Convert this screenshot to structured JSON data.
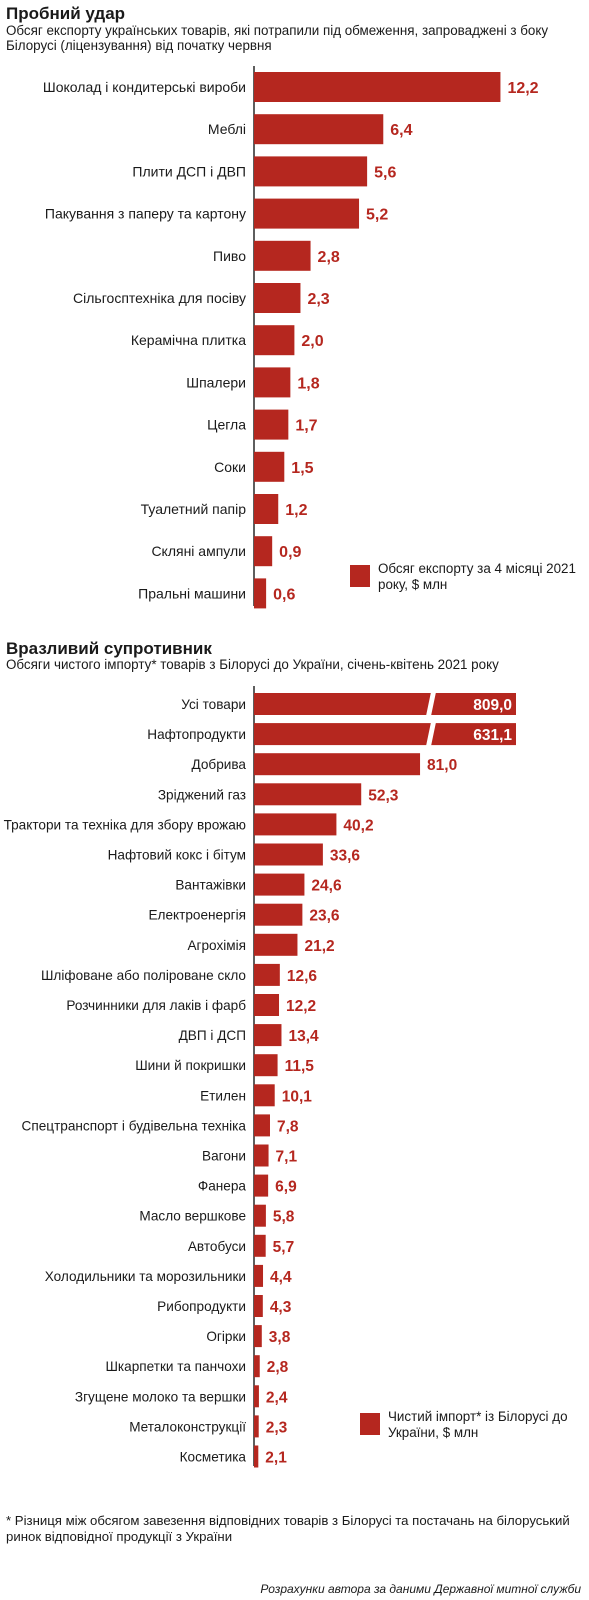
{
  "colors": {
    "bar": "#b5271f",
    "label": "#b5271f",
    "axis": "#1a1a1a"
  },
  "chart_data": [
    {
      "type": "bar",
      "orientation": "horizontal",
      "title": "Пробний удар",
      "subtitle": "Обсяг експорту українських товарів, які потрапили під обмеження, запроваджені з боку Білорусі (ліцензування) від початку червня",
      "legend": "Обсяг експорту за 4 місяці 2021 року, $ млн",
      "legend_position": "bottom-right",
      "categories": [
        "Шоколад і кондитерські вироби",
        "Меблі",
        "Плити ДСП і ДВП",
        "Пакування з паперу та картону",
        "Пиво",
        "Сільгосптехніка для посіву",
        "Керамічна плитка",
        "Шпалери",
        "Цегла",
        "Соки",
        "Туалетний папір",
        "Скляні ампули",
        "Пральні машини"
      ],
      "values": [
        12.2,
        6.4,
        5.6,
        5.2,
        2.8,
        2.3,
        2.0,
        1.8,
        1.7,
        1.5,
        1.2,
        0.9,
        0.6
      ],
      "value_labels": [
        "12,2",
        "6,4",
        "5,6",
        "5,2",
        "2,8",
        "2,3",
        "2,0",
        "1,8",
        "1,7",
        "1,5",
        "1,2",
        "0,9",
        "0,6"
      ],
      "grid": false
    },
    {
      "type": "bar",
      "orientation": "horizontal",
      "title": "Вразливий супротивник",
      "subtitle": "Обсяги чистого імпорту* товарів з Білорусі до України, січень-квітень 2021 року",
      "legend": "Чистий імпорт* із Білорусі до України, $ млн",
      "legend_position": "bottom-right",
      "categories": [
        "Усі товари",
        "Нафтопродукти",
        "Добрива",
        "Зріджений газ",
        "Трактори та техніка для збору врожаю",
        "Нафтовий кокс і бітум",
        "Вантажівки",
        "Електроенергія",
        "Агрохімія",
        "Шліфоване або поліроване скло",
        "Розчинники для лаків і фарб",
        "ДВП і ДСП",
        "Шини й покришки",
        "Етилен",
        "Спецтранспорт і будівельна техніка",
        "Вагони",
        "Фанера",
        "Масло вершкове",
        "Автобуси",
        "Холодильники та морозильники",
        "Рибопродукти",
        "Огірки",
        "Шкарпетки та панчохи",
        "Згущене молоко та вершки",
        "Металоконструкції",
        "Косметика"
      ],
      "values": [
        809.0,
        631.1,
        81.0,
        52.3,
        40.2,
        33.6,
        24.6,
        23.6,
        21.2,
        12.6,
        12.2,
        13.4,
        11.5,
        10.1,
        7.8,
        7.1,
        6.9,
        5.8,
        5.7,
        4.4,
        4.3,
        3.8,
        2.8,
        2.4,
        2.3,
        2.1
      ],
      "value_labels": [
        "809,0",
        "631,1",
        "81,0",
        "52,3",
        "40,2",
        "33,6",
        "24,6",
        "23,6",
        "21,2",
        "12,6",
        "12,2",
        "13,4",
        "11,5",
        "10,1",
        "7,8",
        "7,1",
        "6,9",
        "5,8",
        "5,7",
        "4,4",
        "4,3",
        "3,8",
        "2,8",
        "2,4",
        "2,3",
        "2,1"
      ],
      "broken_bars": [
        "Усі товари",
        "Нафтопродукти"
      ],
      "grid": false
    }
  ],
  "footnote": "* Різниця між обсягом завезення відповідних товарів з Білорусі та постачань на білоруський ринок відповідної продукції з України",
  "source": "Розрахунки автора за даними Державної митної служби"
}
